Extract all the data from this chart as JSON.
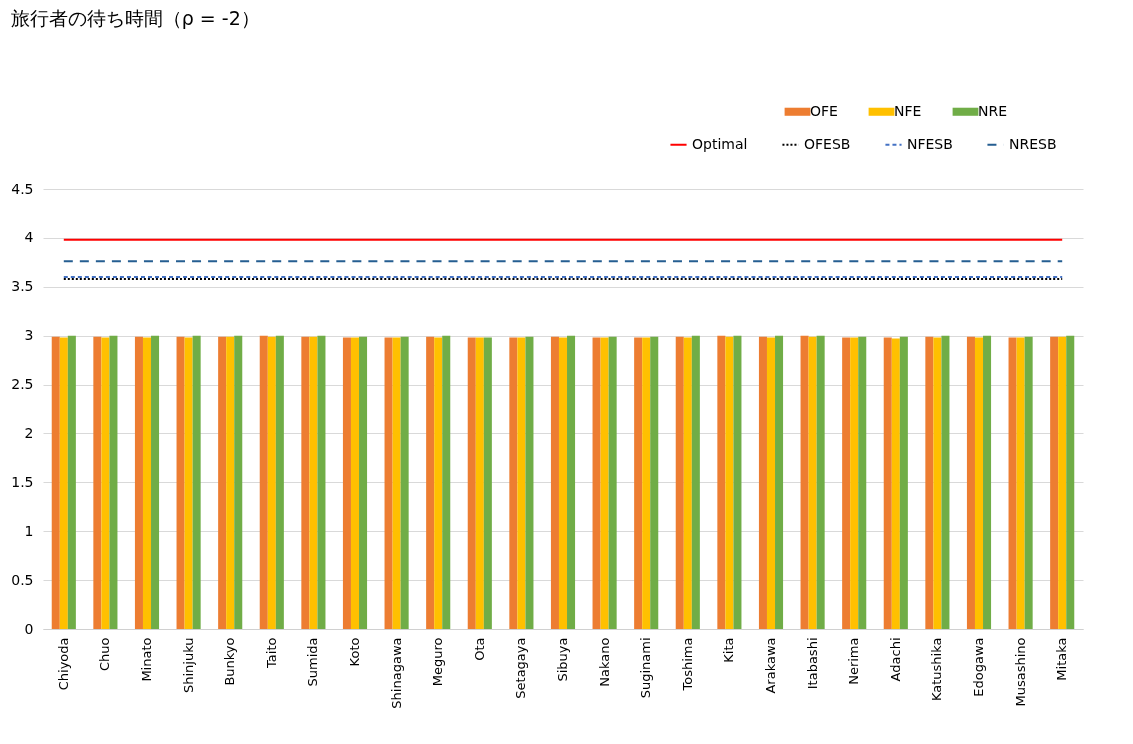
{
  "chart_data": {
    "type": "bar",
    "title": "旅行者の待ち時間（ρ = -2）",
    "categories": [
      "Chiyoda",
      "Chuo",
      "Minato",
      "Shinjuku",
      "Bunkyo",
      "Taito",
      "Sumida",
      "Koto",
      "Shinagawa",
      "Meguro",
      "Ota",
      "Setagaya",
      "Sibuya",
      "Nakano",
      "Suginami",
      "Toshima",
      "Kita",
      "Arakawa",
      "Itabashi",
      "Nerima",
      "Adachi",
      "Katushika",
      "Edogawa",
      "Musashino",
      "Mitaka"
    ],
    "series": [
      {
        "name": "OFE",
        "color": "#ed7d31",
        "values": [
          2.99,
          2.99,
          2.99,
          2.99,
          2.99,
          3.0,
          2.99,
          2.98,
          2.98,
          2.99,
          2.98,
          2.98,
          2.99,
          2.98,
          2.98,
          2.99,
          3.0,
          2.99,
          3.0,
          2.98,
          2.98,
          2.99,
          2.99,
          2.98,
          2.99
        ]
      },
      {
        "name": "NFE",
        "color": "#ffc000",
        "values": [
          2.98,
          2.98,
          2.98,
          2.98,
          2.99,
          2.99,
          2.99,
          2.98,
          2.98,
          2.98,
          2.98,
          2.98,
          2.98,
          2.98,
          2.98,
          2.98,
          2.99,
          2.98,
          2.99,
          2.98,
          2.97,
          2.98,
          2.98,
          2.98,
          2.99
        ]
      },
      {
        "name": "NRE",
        "color": "#70ad47",
        "values": [
          3.0,
          3.0,
          3.0,
          3.0,
          3.0,
          3.0,
          3.0,
          2.99,
          2.99,
          3.0,
          2.98,
          2.99,
          3.0,
          2.99,
          2.99,
          3.0,
          3.0,
          3.0,
          3.0,
          2.99,
          2.99,
          3.0,
          3.0,
          2.99,
          3.0
        ]
      },
      {
        "name": "Optimal",
        "type": "line",
        "color": "#ff0000",
        "line_style": "solid",
        "values": [
          3.98,
          3.98,
          3.98,
          3.98,
          3.98,
          3.98,
          3.98,
          3.98,
          3.98,
          3.98,
          3.98,
          3.98,
          3.98,
          3.98,
          3.98,
          3.98,
          3.98,
          3.98,
          3.98,
          3.98,
          3.98,
          3.98,
          3.98,
          3.98,
          3.98
        ]
      },
      {
        "name": "OFESB",
        "type": "line",
        "color": "#000000",
        "line_style": "dotted",
        "values": [
          3.58,
          3.58,
          3.58,
          3.58,
          3.58,
          3.58,
          3.58,
          3.58,
          3.58,
          3.58,
          3.58,
          3.58,
          3.58,
          3.58,
          3.58,
          3.58,
          3.58,
          3.58,
          3.58,
          3.58,
          3.58,
          3.58,
          3.58,
          3.58,
          3.58
        ]
      },
      {
        "name": "NFESB",
        "type": "line",
        "color": "#4472c4",
        "line_style": "dashed",
        "values": [
          3.6,
          3.6,
          3.6,
          3.6,
          3.6,
          3.6,
          3.6,
          3.6,
          3.6,
          3.6,
          3.6,
          3.6,
          3.6,
          3.6,
          3.6,
          3.6,
          3.6,
          3.6,
          3.6,
          3.6,
          3.6,
          3.6,
          3.6,
          3.6,
          3.6
        ]
      },
      {
        "name": "NRESB",
        "type": "line",
        "color": "#255e91",
        "line_style": "dashed",
        "values": [
          3.76,
          3.76,
          3.76,
          3.76,
          3.76,
          3.76,
          3.76,
          3.76,
          3.76,
          3.76,
          3.76,
          3.76,
          3.76,
          3.76,
          3.76,
          3.76,
          3.76,
          3.76,
          3.76,
          3.76,
          3.76,
          3.76,
          3.76,
          3.76,
          3.76
        ]
      }
    ],
    "ylim": [
      0,
      4.5
    ],
    "yticks": [
      0,
      0.5,
      1,
      1.5,
      2,
      2.5,
      3,
      3.5,
      4,
      4.5
    ],
    "grid": "y",
    "legend": "top right"
  }
}
